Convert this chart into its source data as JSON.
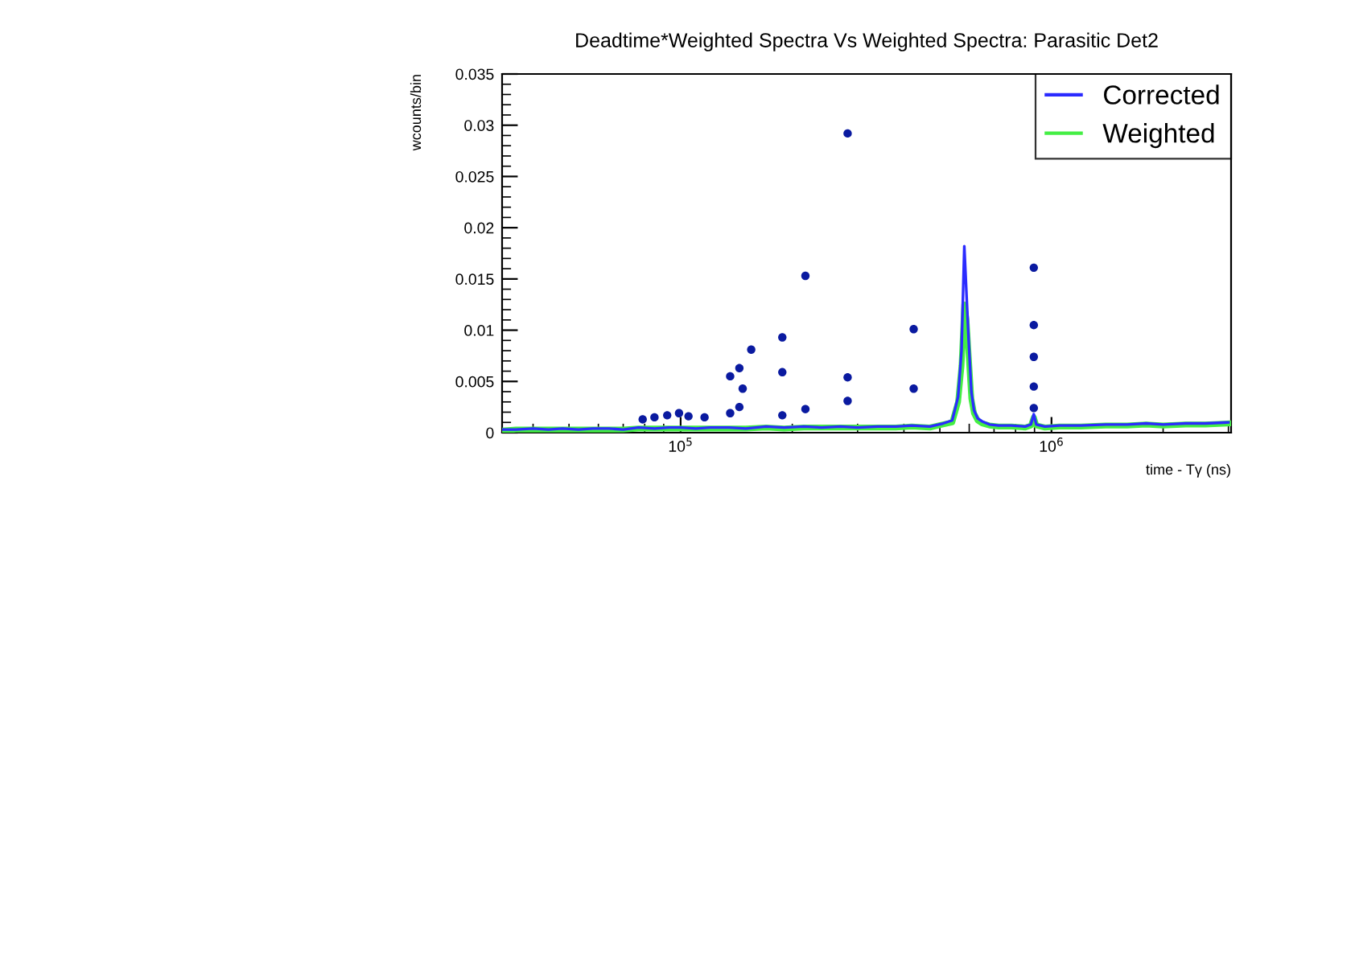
{
  "chart_data": {
    "type": "line",
    "title": "Deadtime*Weighted Spectra Vs Weighted Spectra: Parasitic Det2",
    "xlabel": "time - Tγ (ns)",
    "ylabel": "wcounts/bin",
    "log": "x",
    "xlim": [
      33000,
      3050000
    ],
    "xticks": [
      {
        "value": 100000,
        "label": "10$^{5}$"
      },
      {
        "value": 1000000,
        "label": "10$^{6}$"
      }
    ],
    "ylim": [
      0,
      0.035
    ],
    "yticks": [
      0,
      0.005,
      0.01,
      0.015,
      0.02,
      0.025,
      0.03,
      0.035
    ],
    "grid": false,
    "legend": "top right",
    "line_style": "solid",
    "x": [
      33000,
      36000,
      40000,
      44000,
      48000,
      53000,
      58000,
      64000,
      70000,
      77000,
      85000,
      93000,
      100000,
      110000,
      120000,
      135000,
      150000,
      170000,
      190000,
      215000,
      240000,
      270000,
      300000,
      340000,
      380000,
      420000,
      470000,
      510000,
      540000,
      560000,
      572000,
      582000,
      590000,
      598000,
      608000,
      618000,
      632000,
      650000,
      680000,
      720000,
      780000,
      850000,
      880000,
      896000,
      910000,
      960000,
      1050000,
      1200000,
      1400000,
      1600000,
      1800000,
      2000000,
      2300000,
      2600000,
      3000000
    ],
    "series": [
      {
        "name": "Corrected",
        "color": "#2b2bff",
        "values": [
          0.0003,
          0.0003,
          0.0004,
          0.0003,
          0.0004,
          0.0003,
          0.0004,
          0.0004,
          0.0003,
          0.0005,
          0.0004,
          0.0005,
          0.0005,
          0.0004,
          0.0005,
          0.0005,
          0.0004,
          0.0006,
          0.0005,
          0.0006,
          0.0005,
          0.0006,
          0.0005,
          0.0006,
          0.0006,
          0.0007,
          0.0006,
          0.0009,
          0.0012,
          0.0035,
          0.008,
          0.0182,
          0.0135,
          0.009,
          0.004,
          0.0022,
          0.0014,
          0.0011,
          0.0008,
          0.0007,
          0.0007,
          0.0006,
          0.0008,
          0.0018,
          0.0008,
          0.0006,
          0.0007,
          0.0007,
          0.0008,
          0.0008,
          0.0009,
          0.0008,
          0.0009,
          0.0009,
          0.001
        ]
      },
      {
        "name": "Weighted",
        "color": "#44ee44",
        "values": [
          0.0002,
          0.0003,
          0.0003,
          0.0003,
          0.0003,
          0.0003,
          0.0003,
          0.0003,
          0.0003,
          0.0004,
          0.0004,
          0.0004,
          0.0004,
          0.0004,
          0.0004,
          0.0004,
          0.0004,
          0.0005,
          0.0004,
          0.0005,
          0.0005,
          0.0005,
          0.0005,
          0.0005,
          0.0005,
          0.0006,
          0.0005,
          0.0008,
          0.001,
          0.003,
          0.0065,
          0.0125,
          0.011,
          0.0075,
          0.0033,
          0.0019,
          0.0012,
          0.0009,
          0.0007,
          0.0006,
          0.0006,
          0.0005,
          0.0007,
          0.0015,
          0.0007,
          0.0005,
          0.0006,
          0.0006,
          0.0007,
          0.0007,
          0.0008,
          0.0007,
          0.0008,
          0.0008,
          0.0009
        ]
      },
      {
        "type": "scatter",
        "marker": "circle",
        "color": "#0a1aa0",
        "x": [
          79000,
          85000,
          92000,
          99000,
          105000,
          116000,
          136000,
          136000,
          144000,
          144000,
          147000,
          155000,
          188000,
          188000,
          188000,
          217000,
          217000,
          282000,
          282000,
          282000,
          425000,
          425000,
          896000,
          896000,
          896000,
          896000,
          896000
        ],
        "values": [
          0.0013,
          0.0015,
          0.0017,
          0.0019,
          0.0016,
          0.0015,
          0.0055,
          0.0019,
          0.0063,
          0.0025,
          0.0043,
          0.0081,
          0.0093,
          0.0059,
          0.0017,
          0.0153,
          0.0023,
          0.0292,
          0.0054,
          0.0031,
          0.0101,
          0.0043,
          0.0161,
          0.0105,
          0.0074,
          0.0045,
          0.0024
        ]
      }
    ]
  }
}
